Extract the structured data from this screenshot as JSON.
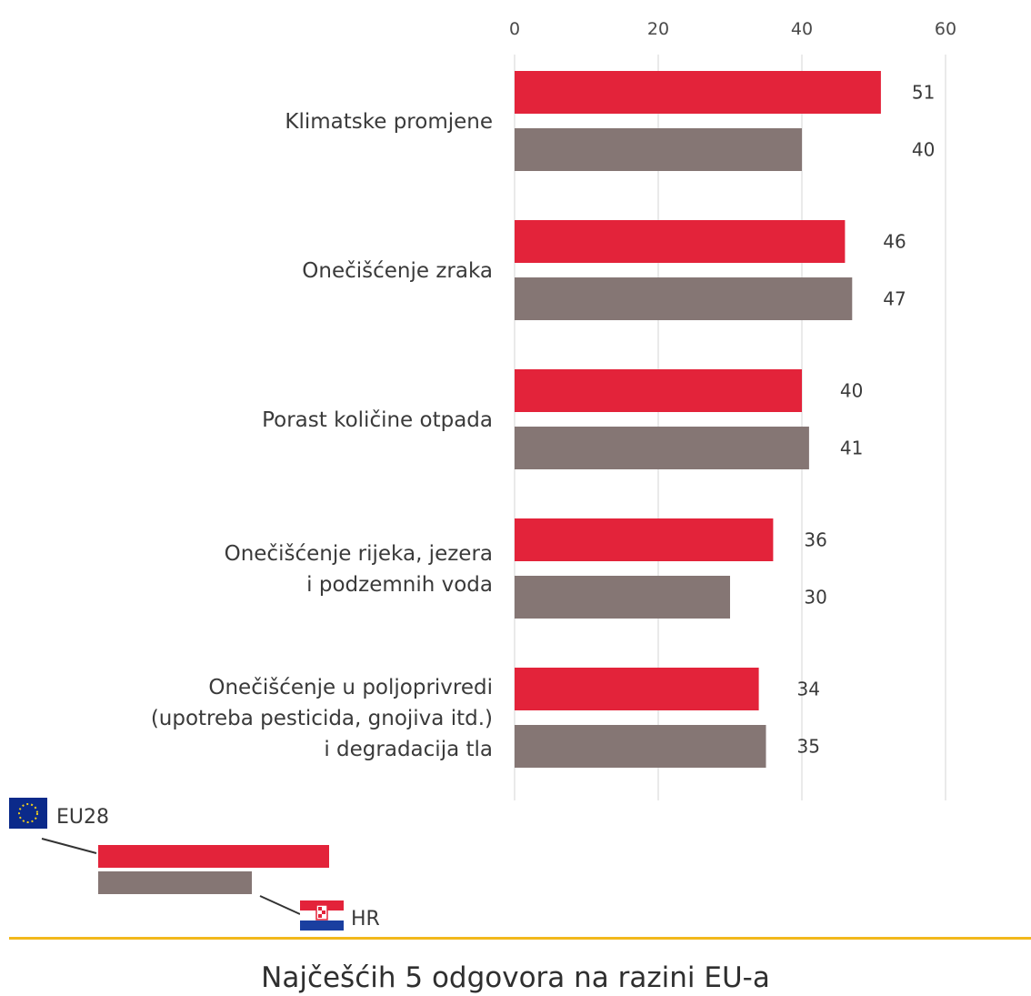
{
  "chart_data": {
    "type": "bar",
    "orientation": "horizontal",
    "categories": [
      [
        "Klimatske promjene"
      ],
      [
        "Onečišćenje zraka"
      ],
      [
        "Porast količine otpada"
      ],
      [
        "Onečišćenje rijeka, jezera",
        "i podzemnih voda"
      ],
      [
        "Onečišćenje u poljoprivredi",
        "(upotreba pesticida, gnojiva itd.)",
        "i degradacija tla"
      ]
    ],
    "series": [
      {
        "name": "EU28",
        "values": [
          51,
          46,
          40,
          36,
          34
        ],
        "color": "#e3233a"
      },
      {
        "name": "HR",
        "values": [
          40,
          47,
          41,
          30,
          35
        ],
        "color": "#857674"
      }
    ],
    "xlim": [
      0,
      60
    ],
    "xticks": [
      "0",
      "20",
      "40",
      "60"
    ],
    "grid": true,
    "legend_position": "bottom-left",
    "caption": "Najčešćih 5 odgovora na razini EU-a",
    "separator_color": "#f2b81b",
    "legend_icons": {
      "EU28": "eu-flag-icon",
      "HR": "croatia-flag-icon"
    }
  }
}
